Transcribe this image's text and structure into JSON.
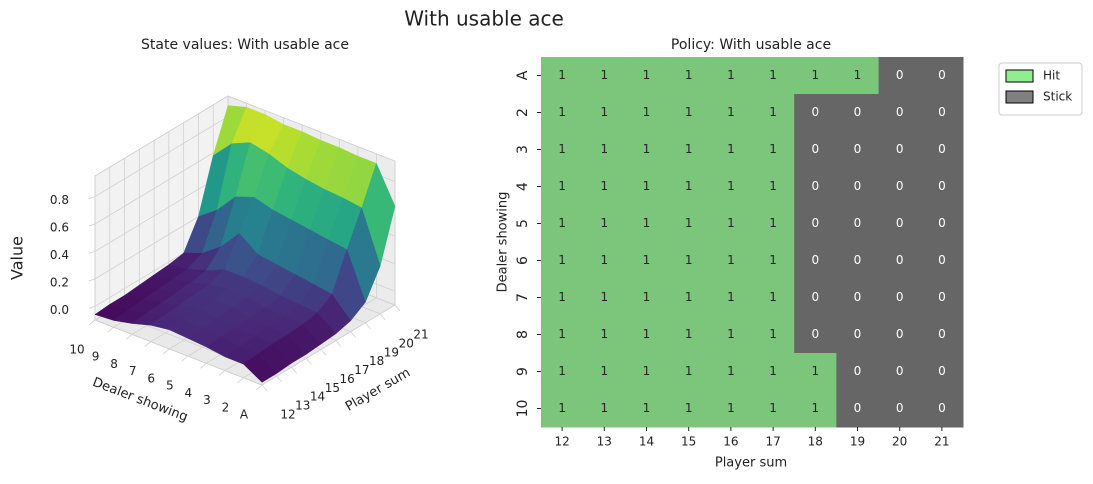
{
  "title": "With usable ace",
  "chart_data": [
    {
      "type": "surface",
      "title": "State values: With usable ace",
      "x_label": "Player sum",
      "y_label": "Dealer showing",
      "z_label": "Value",
      "x": [
        12,
        13,
        14,
        15,
        16,
        17,
        18,
        19,
        20,
        21
      ],
      "xlim": [
        12,
        21
      ],
      "xticks": [
        12,
        13,
        14,
        15,
        16,
        17,
        18,
        19,
        20,
        21
      ],
      "y": [
        "A",
        "2",
        "3",
        "4",
        "5",
        "6",
        "7",
        "8",
        "9",
        "10"
      ],
      "z": [
        [
          -0.08,
          -0.08,
          -0.07,
          -0.07,
          -0.06,
          -0.05,
          -0.02,
          0.05,
          0.25,
          0.62
        ],
        [
          0.0,
          0.01,
          0.02,
          0.02,
          0.03,
          0.05,
          0.12,
          0.38,
          0.62,
          0.88
        ],
        [
          0.0,
          0.01,
          0.02,
          0.03,
          0.04,
          0.06,
          0.14,
          0.4,
          0.64,
          0.88
        ],
        [
          0.02,
          0.03,
          0.03,
          0.04,
          0.05,
          0.07,
          0.16,
          0.42,
          0.65,
          0.89
        ],
        [
          0.03,
          0.04,
          0.05,
          0.06,
          0.07,
          0.09,
          0.18,
          0.44,
          0.67,
          0.89
        ],
        [
          0.04,
          0.05,
          0.06,
          0.07,
          0.08,
          0.1,
          0.2,
          0.46,
          0.7,
          0.9
        ],
        [
          0.02,
          0.03,
          0.04,
          0.05,
          0.06,
          0.1,
          0.3,
          0.5,
          0.75,
          0.9
        ],
        [
          -0.02,
          -0.01,
          0.0,
          0.01,
          0.02,
          0.04,
          0.15,
          0.45,
          0.78,
          0.92
        ],
        [
          -0.05,
          -0.04,
          -0.03,
          -0.02,
          -0.01,
          0.0,
          0.05,
          0.3,
          0.72,
          0.92
        ],
        [
          -0.06,
          -0.05,
          -0.05,
          -0.04,
          -0.03,
          -0.02,
          0.0,
          0.2,
          0.58,
          0.88
        ]
      ],
      "zlim": [
        -0.1,
        0.95
      ],
      "zticks": [
        {
          "value": 0,
          "label": "0.0"
        },
        0.2,
        0.4,
        0.6,
        0.8
      ],
      "colormap": "viridis",
      "grid": true
    },
    {
      "type": "heatmap",
      "title": "Policy: With usable ace",
      "x_label": "Player sum",
      "y_label": "Dealer showing",
      "x": [
        12,
        13,
        14,
        15,
        16,
        17,
        18,
        19,
        20,
        21
      ],
      "y": [
        "A",
        "2",
        "3",
        "4",
        "5",
        "6",
        "7",
        "8",
        "9",
        "10"
      ],
      "values": [
        [
          1,
          1,
          1,
          1,
          1,
          1,
          1,
          1,
          0,
          0
        ],
        [
          1,
          1,
          1,
          1,
          1,
          1,
          0,
          0,
          0,
          0
        ],
        [
          1,
          1,
          1,
          1,
          1,
          1,
          0,
          0,
          0,
          0
        ],
        [
          1,
          1,
          1,
          1,
          1,
          1,
          0,
          0,
          0,
          0
        ],
        [
          1,
          1,
          1,
          1,
          1,
          1,
          0,
          0,
          0,
          0
        ],
        [
          1,
          1,
          1,
          1,
          1,
          1,
          0,
          0,
          0,
          0
        ],
        [
          1,
          1,
          1,
          1,
          1,
          1,
          0,
          0,
          0,
          0
        ],
        [
          1,
          1,
          1,
          1,
          1,
          1,
          0,
          0,
          0,
          0
        ],
        [
          1,
          1,
          1,
          1,
          1,
          1,
          1,
          0,
          0,
          0
        ],
        [
          1,
          1,
          1,
          1,
          1,
          1,
          1,
          0,
          0,
          0
        ]
      ],
      "cell_colors": {
        "0": "#666666",
        "1": "#7bc67b"
      },
      "text_colors": {
        "0": "#ffffff",
        "1": "#262626"
      },
      "legend": [
        {
          "name": "Hit",
          "color": "#90ee90"
        },
        {
          "name": "Stick",
          "color": "#808080"
        }
      ],
      "legend_position": "outside upper right"
    }
  ]
}
